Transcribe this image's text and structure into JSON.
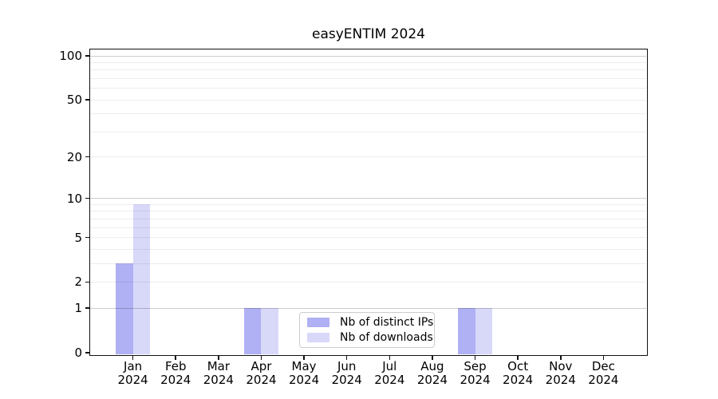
{
  "chart_data": {
    "type": "bar",
    "title": "easyENTIM 2024",
    "categories": [
      "Jan",
      "Feb",
      "Mar",
      "Apr",
      "May",
      "Jun",
      "Jul",
      "Aug",
      "Sep",
      "Oct",
      "Nov",
      "Dec"
    ],
    "year_label": "2024",
    "series": [
      {
        "name": "Nb of distinct IPs",
        "color": "#b0b0f4",
        "values": [
          3,
          0,
          0,
          1,
          0,
          0,
          0,
          0,
          1,
          0,
          0,
          0
        ]
      },
      {
        "name": "Nb of downloads",
        "color": "#d8d8f9",
        "values": [
          9,
          0,
          0,
          1,
          0,
          0,
          0,
          0,
          1,
          0,
          0,
          0
        ]
      }
    ],
    "yscale": "log1p",
    "ylim": [
      0,
      100
    ],
    "yticks": [
      0,
      1,
      2,
      5,
      10,
      20,
      50,
      100
    ],
    "grid": {
      "major_values": [
        1,
        10,
        100
      ],
      "minor_values": [
        2,
        3,
        4,
        5,
        6,
        7,
        8,
        9,
        20,
        30,
        40,
        50,
        60,
        70,
        80,
        90
      ],
      "major_color": "#cccccc",
      "minor_color": "#ededed"
    },
    "legend": {
      "position": "bottom-center",
      "border_color": "#cccccc"
    }
  },
  "colors": {
    "background": "#ffffff",
    "axis": "#111111",
    "text": "#000000"
  }
}
